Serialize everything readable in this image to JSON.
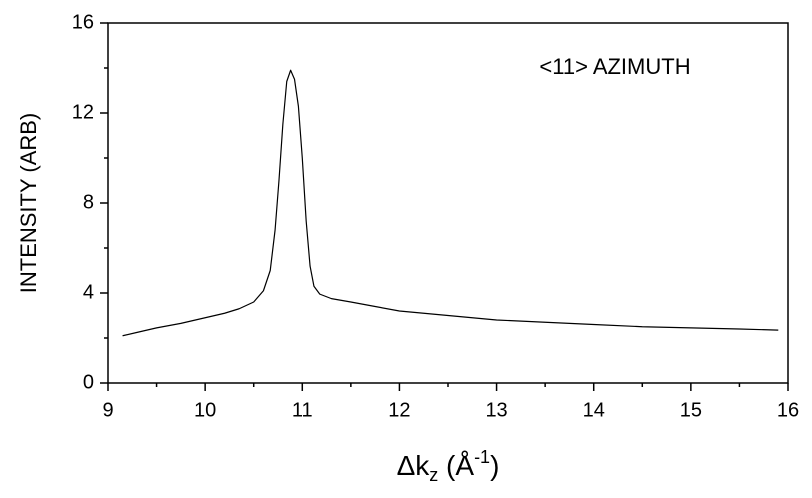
{
  "chart_data": {
    "type": "line",
    "annotation": "<11>  AZIMUTH",
    "ylabel": "INTENSITY (ARB)",
    "xlabel": [
      "Δk",
      "z",
      " (Å",
      "-1",
      ")"
    ],
    "x": [
      9.15,
      9.3,
      9.5,
      9.75,
      10.0,
      10.2,
      10.35,
      10.5,
      10.6,
      10.67,
      10.72,
      10.76,
      10.8,
      10.84,
      10.88,
      10.92,
      10.96,
      11.0,
      11.04,
      11.08,
      11.12,
      11.18,
      11.3,
      11.5,
      11.75,
      12.0,
      12.5,
      13.0,
      13.5,
      14.0,
      14.5,
      15.0,
      15.5,
      15.9
    ],
    "series": [
      {
        "color": "#000000",
        "values": [
          2.1,
          2.25,
          2.45,
          2.65,
          2.9,
          3.1,
          3.3,
          3.6,
          4.1,
          5.0,
          6.8,
          9.0,
          11.5,
          13.4,
          13.9,
          13.5,
          12.3,
          10.0,
          7.2,
          5.2,
          4.3,
          3.95,
          3.75,
          3.6,
          3.4,
          3.2,
          3.0,
          2.8,
          2.7,
          2.6,
          2.5,
          2.45,
          2.4,
          2.35
        ]
      }
    ],
    "xlim": [
      9,
      16
    ],
    "xticks": [
      9,
      10,
      11,
      12,
      13,
      14,
      15,
      16
    ],
    "xminorticks": [
      9.5,
      10.5,
      11.5,
      12.5,
      13.5,
      14.5,
      15.5
    ],
    "ylim": [
      0,
      16
    ],
    "yticks": [
      0,
      4,
      8,
      12,
      16
    ],
    "yminorticks": [
      2,
      6,
      10,
      14
    ]
  }
}
